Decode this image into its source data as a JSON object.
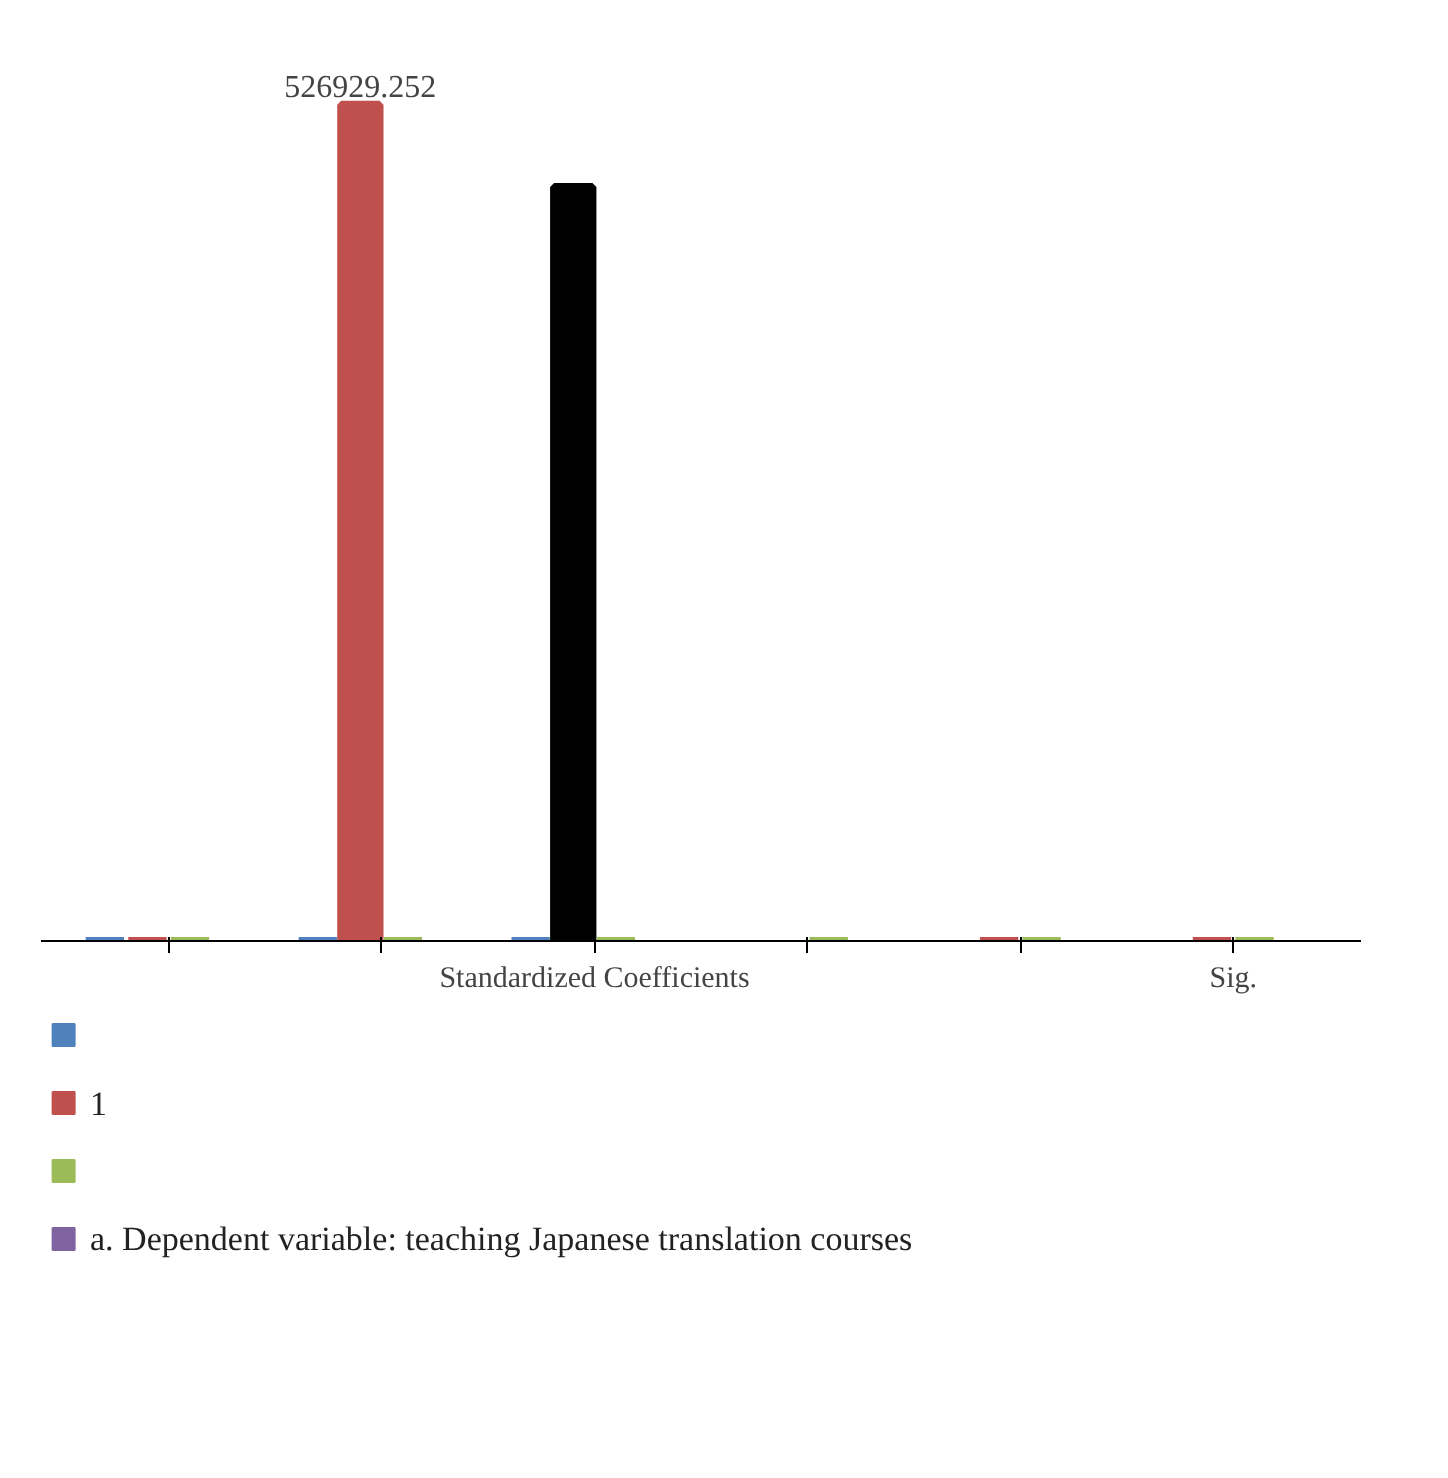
{
  "chart_data": {
    "type": "bar",
    "categories": [
      null,
      null,
      "Standardized Coefficients",
      null,
      null,
      "Sig."
    ],
    "series": [
      {
        "color": "#4f81bd",
        "values": [
          0,
          0,
          0,
          null,
          null,
          null
        ]
      },
      {
        "name": "1",
        "color": "#c0504d",
        "colors": [
          "#c0504d",
          "#c0504d",
          "#000000",
          "#c0504d",
          "#c0504d",
          "#c0504d"
        ],
        "values": [
          0,
          526929.252,
          475000,
          null,
          0,
          0
        ],
        "value_labels": [
          null,
          "526929.252",
          null,
          null,
          null,
          null
        ]
      },
      {
        "color": "#9bbb59",
        "values": [
          0,
          0,
          0,
          0,
          0,
          0
        ]
      },
      {
        "name": "a. Dependent variable: teaching Japanese translation courses",
        "color": "#8064a2",
        "values": [
          null,
          null,
          null,
          null,
          null,
          null
        ]
      }
    ],
    "legend": "bottom"
  }
}
